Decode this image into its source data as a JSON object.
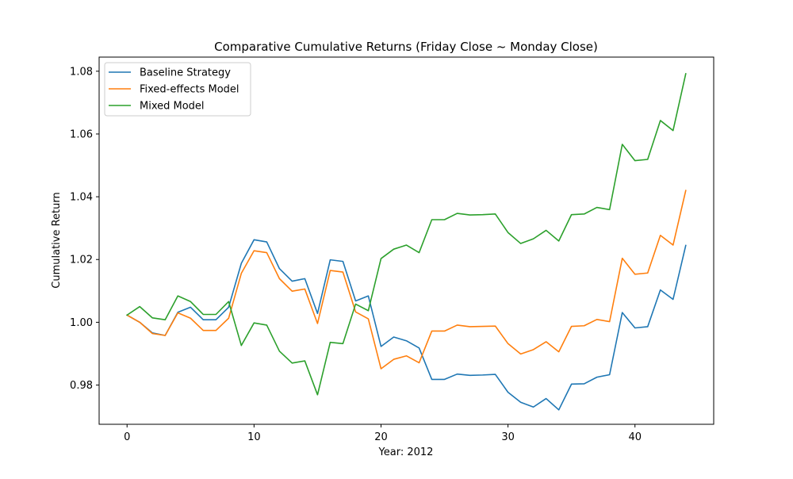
{
  "chart_data": {
    "type": "line",
    "title": "Comparative Cumulative Returns (Friday Close ~ Monday Close)",
    "xlabel": "Year: 2012",
    "ylabel": "Cumulative Return",
    "xlim": [
      -2.2,
      46.2
    ],
    "ylim": [
      0.9675,
      1.0845
    ],
    "x_ticks": [
      0,
      10,
      20,
      30,
      40
    ],
    "y_ticks": [
      0.98,
      1.0,
      1.02,
      1.04,
      1.06,
      1.08
    ],
    "x_tick_labels": [
      "0",
      "10",
      "20",
      "30",
      "40"
    ],
    "y_tick_labels": [
      "0.98",
      "1.00",
      "1.02",
      "1.04",
      "1.06",
      "1.08"
    ],
    "grid": false,
    "legend_position": "top-left",
    "x": [
      0,
      1,
      2,
      3,
      4,
      5,
      6,
      7,
      8,
      9,
      10,
      11,
      12,
      13,
      14,
      15,
      16,
      17,
      18,
      19,
      20,
      21,
      22,
      23,
      24,
      25,
      26,
      27,
      28,
      29,
      30,
      31,
      32,
      33,
      34,
      35,
      36,
      37,
      38,
      39,
      40,
      41,
      42,
      43,
      44
    ],
    "series": [
      {
        "name": "Baseline Strategy",
        "color": "#1f77b4",
        "values": [
          1.0023,
          1.0,
          0.9966,
          0.9958,
          1.0032,
          1.0048,
          1.0008,
          1.0008,
          1.0048,
          1.0188,
          1.0263,
          1.0256,
          1.0171,
          1.0131,
          1.0139,
          1.0028,
          1.0199,
          1.0194,
          1.0068,
          1.0084,
          0.9923,
          0.9953,
          0.9941,
          0.9918,
          0.9818,
          0.9818,
          0.9835,
          0.9831,
          0.9832,
          0.9834,
          0.9777,
          0.9745,
          0.973,
          0.9757,
          0.9721,
          0.9803,
          0.9804,
          0.9825,
          0.9833,
          1.0031,
          0.9982,
          0.9986,
          1.0103,
          1.0073,
          1.0245
        ]
      },
      {
        "name": "Fixed-effects Model",
        "color": "#ff7f0e",
        "values": [
          1.0023,
          1.0,
          0.9964,
          0.9958,
          1.003,
          1.0013,
          0.9974,
          0.9974,
          1.0013,
          1.0156,
          1.0228,
          1.0222,
          1.0139,
          1.0099,
          1.0106,
          0.9996,
          1.0165,
          1.016,
          1.0033,
          1.0011,
          0.9852,
          0.9882,
          0.9893,
          0.9871,
          0.9972,
          0.9972,
          0.9991,
          0.9986,
          0.9987,
          0.9988,
          0.9932,
          0.9899,
          0.9913,
          0.9938,
          0.9906,
          0.9987,
          0.9989,
          1.0009,
          1.0002,
          1.0204,
          1.0153,
          1.0157,
          1.0277,
          1.0246,
          1.042
        ]
      },
      {
        "name": "Mixed Model",
        "color": "#2ca02c",
        "values": [
          1.0023,
          1.005,
          1.0014,
          1.0008,
          1.0084,
          1.0066,
          1.0025,
          1.0025,
          1.0066,
          0.9926,
          0.9998,
          0.9991,
          0.9908,
          0.987,
          0.9877,
          0.9769,
          0.9936,
          0.9932,
          1.0058,
          1.0037,
          1.0203,
          1.0233,
          1.0246,
          1.0222,
          1.0327,
          1.0327,
          1.0347,
          1.0342,
          1.0343,
          1.0345,
          1.0286,
          1.0251,
          1.0266,
          1.0293,
          1.0259,
          1.0343,
          1.0345,
          1.0366,
          1.0359,
          1.0567,
          1.0515,
          1.0519,
          1.0643,
          1.0611,
          1.0792
        ]
      }
    ]
  }
}
